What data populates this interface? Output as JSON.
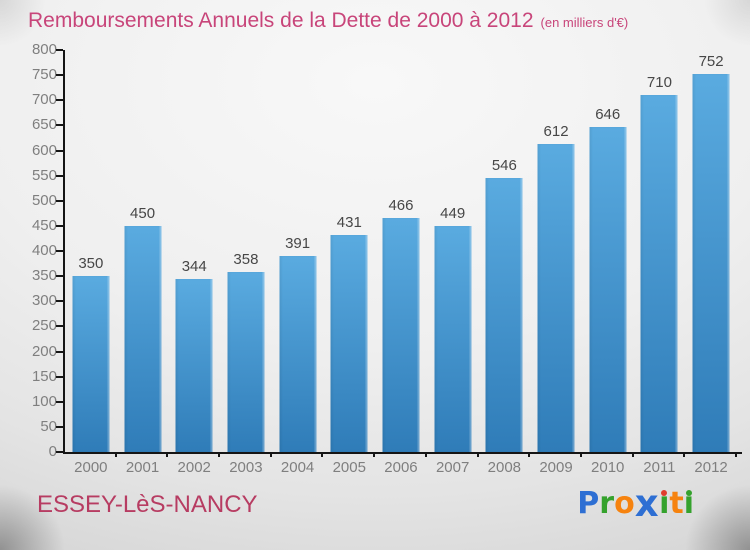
{
  "title": "Remboursements Annuels de la Dette de 2000 à 2012",
  "subtitle": "(en milliers d'€)",
  "chart_data": {
    "type": "bar",
    "categories": [
      "2000",
      "2001",
      "2002",
      "2003",
      "2004",
      "2005",
      "2006",
      "2007",
      "2008",
      "2009",
      "2010",
      "2011",
      "2012"
    ],
    "values": [
      350,
      450,
      344,
      358,
      391,
      431,
      466,
      449,
      546,
      612,
      646,
      710,
      752
    ],
    "title": "Remboursements Annuels de la Dette de 2000 à 2012",
    "subtitle": "(en milliers d'€)",
    "xlabel": "",
    "ylabel": "",
    "ylim": [
      0,
      800
    ],
    "ytick_step": 50,
    "grid": false,
    "legend": false,
    "value_labels": true
  },
  "colors": {
    "title_pink": "#c8457a",
    "city_pink": "#b73c62",
    "bar_top": "#5aabe0",
    "bar_bottom": "#2f7cb8",
    "axis_line": "#151515",
    "axis_label_gray": "#7f7f7f",
    "value_label_gray": "#474747"
  },
  "footer": {
    "city": "ESSEY-LèS-NANCY",
    "logo": {
      "name": "Proxiti",
      "letters": [
        {
          "char": "P",
          "color": "#2e6fd3"
        },
        {
          "char": "r",
          "color": "#35a22d"
        },
        {
          "char": "o",
          "color": "#f6830f"
        },
        {
          "char": "x",
          "color": "#2e6fd3",
          "big": true
        },
        {
          "char": "i",
          "color": "#35a22d",
          "dot": "#e23d2e"
        },
        {
          "char": "t",
          "color": "#f6830f"
        },
        {
          "char": "i",
          "color": "#35a22d",
          "dot": "#35a22d"
        }
      ]
    }
  }
}
